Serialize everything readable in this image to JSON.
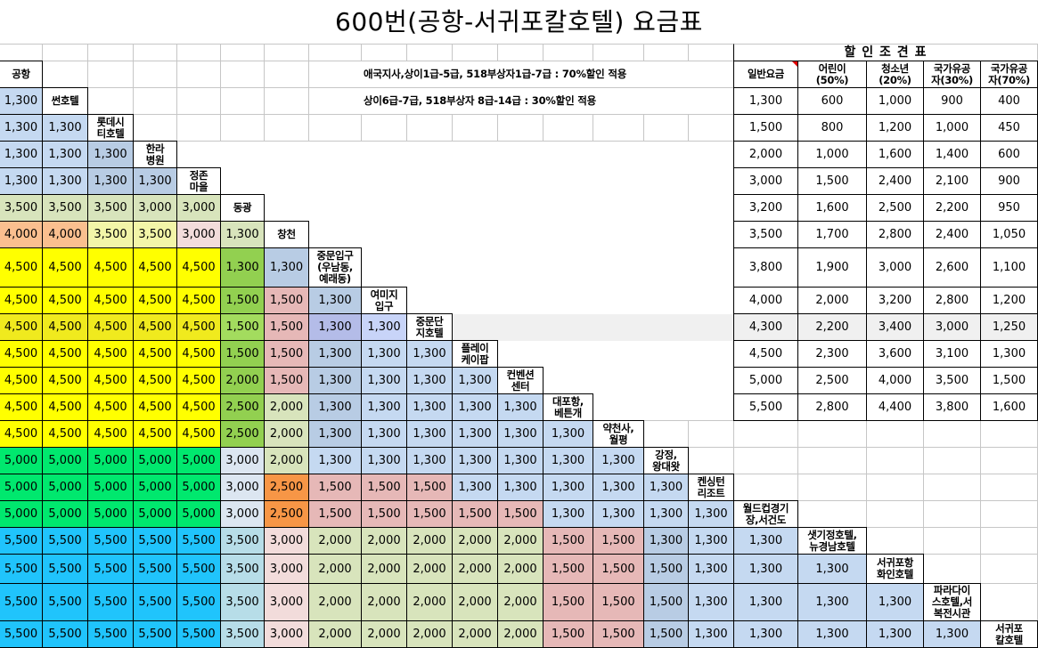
{
  "title": "600번(공항-서귀포칼호텔) 요금표",
  "notes": {
    "line1": "애국지사,상이1급-5급, 518부상자1급-7급 : 70%할인 적용",
    "line2": "상이6급-7급, 518부상자 8급-14급 : 30%할인 적용"
  },
  "colors": {
    "L": "#c5d9f1",
    "B": "#b8cce4",
    "O": "#d8e4bc",
    "P": "#fabf8f",
    "y": "#f2f5a8",
    "K": "#f2dcdb",
    "Y": "#ffff00",
    "G": "#92d050",
    "R": "#e6b8b7",
    "E": "#00e86e",
    "S": "#dce6f1",
    "A": "#f79646",
    "C": "#20c4fc",
    "T": "#b7dde8",
    "Z": "#f0ea1e",
    "g": "#a3dc5e",
    "b": "#b4bce8",
    "l": "#c8d4f8",
    "highlight_band": "#f0f0f0",
    "comment_marker": "#e00000"
  },
  "fare_matrix": {
    "highlighted_row": 9,
    "rows": [
      {
        "stop": "공항",
        "values": [],
        "colors": ""
      },
      {
        "stop": "썬호텔",
        "values": [
          "1,300"
        ],
        "colors": "L"
      },
      {
        "stop": "롯데시\n티호텔",
        "values": [
          "1,300",
          "1,300"
        ],
        "colors": "LL"
      },
      {
        "stop": "한라\n병원",
        "values": [
          "1,300",
          "1,300",
          "1,300"
        ],
        "colors": "LLB"
      },
      {
        "stop": "정존\n마을",
        "values": [
          "1,300",
          "1,300",
          "1,300",
          "1,300"
        ],
        "colors": "LLBB"
      },
      {
        "stop": "동광",
        "values": [
          "3,500",
          "3,500",
          "3,500",
          "3,000",
          "3,000"
        ],
        "colors": "OOOOO"
      },
      {
        "stop": "창천",
        "values": [
          "4,000",
          "4,000",
          "3,500",
          "3,500",
          "3,000",
          "1,300"
        ],
        "colors": "PPyyKO"
      },
      {
        "stop": "중문입구\n(우남동,\n예래동)",
        "values": [
          "4,500",
          "4,500",
          "4,500",
          "4,500",
          "4,500",
          "1,300",
          "1,300"
        ],
        "colors": "YYYYYGB"
      },
      {
        "stop": "여미지\n입구",
        "values": [
          "4,500",
          "4,500",
          "4,500",
          "4,500",
          "4,500",
          "1,500",
          "1,500",
          "1,300"
        ],
        "colors": "YYYYYGRB"
      },
      {
        "stop": "중문단\n지호텔",
        "values": [
          "4,500",
          "4,500",
          "4,500",
          "4,500",
          "4,500",
          "1,500",
          "1,500",
          "1,300",
          "1,300"
        ],
        "colors": "ZZZZZgRbl"
      },
      {
        "stop": "플레이\n케이팝",
        "values": [
          "4,500",
          "4,500",
          "4,500",
          "4,500",
          "4,500",
          "1,500",
          "1,500",
          "1,300",
          "1,300",
          "1,300"
        ],
        "colors": "YYYYYGRBLL"
      },
      {
        "stop": "컨벤션\n센터",
        "values": [
          "4,500",
          "4,500",
          "4,500",
          "4,500",
          "4,500",
          "2,000",
          "1,500",
          "1,300",
          "1,300",
          "1,300",
          "1,300"
        ],
        "colors": "YYYYYGRBLLL"
      },
      {
        "stop": "대포항,\n베튼개",
        "values": [
          "4,500",
          "4,500",
          "4,500",
          "4,500",
          "4,500",
          "2,500",
          "2,000",
          "1,300",
          "1,300",
          "1,300",
          "1,300",
          "1,300"
        ],
        "colors": "YYYYYGOBLLLL"
      },
      {
        "stop": "약천사,\n월평",
        "values": [
          "4,500",
          "4,500",
          "4,500",
          "4,500",
          "4,500",
          "2,500",
          "2,000",
          "1,300",
          "1,300",
          "1,300",
          "1,300",
          "1,300",
          "1,300"
        ],
        "colors": "YYYYYGOBLLLLL"
      },
      {
        "stop": "강정,\n왕대왓",
        "values": [
          "5,000",
          "5,000",
          "5,000",
          "5,000",
          "5,000",
          "3,000",
          "2,000",
          "1,300",
          "1,300",
          "1,300",
          "1,300",
          "1,300",
          "1,300",
          "1,300"
        ],
        "colors": "EEEEESOLLLLLLL"
      },
      {
        "stop": "켄싱턴\n리조트",
        "values": [
          "5,000",
          "5,000",
          "5,000",
          "5,000",
          "5,000",
          "3,000",
          "2,500",
          "1,500",
          "1,500",
          "1,500",
          "1,300",
          "1,300",
          "1,300",
          "1,300",
          "1,300"
        ],
        "colors": "EEEEESARRRLLLLL"
      },
      {
        "stop": "월드컵경기\n장,서건도",
        "values": [
          "5,000",
          "5,000",
          "5,000",
          "5,000",
          "5,000",
          "3,000",
          "2,500",
          "1,500",
          "1,500",
          "1,500",
          "1,500",
          "1,500",
          "1,300",
          "1,300",
          "1,300",
          "1,300"
        ],
        "colors": "EEEEESARRRRRLLLL"
      },
      {
        "stop": "샛기정호텔,\n뉴경남호텔",
        "values": [
          "5,500",
          "5,500",
          "5,500",
          "5,500",
          "5,500",
          "3,500",
          "3,000",
          "2,000",
          "2,000",
          "2,000",
          "2,000",
          "2,000",
          "1,500",
          "1,500",
          "1,300",
          "1,300",
          "1,300"
        ],
        "colors": "CCCCCTKOOOOORRBLL"
      },
      {
        "stop": "서귀포항\n화인호텔",
        "values": [
          "5,500",
          "5,500",
          "5,500",
          "5,500",
          "5,500",
          "3,500",
          "3,000",
          "2,000",
          "2,000",
          "2,000",
          "2,000",
          "2,000",
          "1,500",
          "1,500",
          "1,500",
          "1,300",
          "1,300",
          "1,300"
        ],
        "colors": "CCCCCTKOOOOORRBLLL"
      },
      {
        "stop": "파라다이\n스호텔,서\n복전시관",
        "values": [
          "5,500",
          "5,500",
          "5,500",
          "5,500",
          "5,500",
          "3,500",
          "3,000",
          "2,000",
          "2,000",
          "2,000",
          "2,000",
          "2,000",
          "1,500",
          "1,500",
          "1,500",
          "1,300",
          "1,300",
          "1,300",
          "1,300"
        ],
        "colors": "CCCCCTKOOOOORRBLLLL"
      },
      {
        "stop": "서귀포\n칼호텔",
        "values": [
          "5,500",
          "5,500",
          "5,500",
          "5,500",
          "5,500",
          "3,500",
          "3,000",
          "2,000",
          "2,000",
          "2,000",
          "2,000",
          "2,000",
          "1,500",
          "1,500",
          "1,500",
          "1,300",
          "1,300",
          "1,300",
          "1,300",
          "1,300"
        ],
        "colors": "CCCCCTKOOOOORRBLLLLL"
      }
    ]
  },
  "discount_table": {
    "title": "할 인 조 견 표",
    "highlighted_row": 8,
    "headers": [
      "일반요금",
      "어린이\n(50%)",
      "청소년\n(20%)",
      "국가유공\n자(30%)",
      "국가유공\n자(70%)"
    ],
    "rows": [
      [
        "1,300",
        "600",
        "1,000",
        "900",
        "400"
      ],
      [
        "1,500",
        "800",
        "1,200",
        "1,000",
        "450"
      ],
      [
        "2,000",
        "1,000",
        "1,600",
        "1,400",
        "600"
      ],
      [
        "3,000",
        "1,500",
        "2,400",
        "2,100",
        "900"
      ],
      [
        "3,200",
        "1,600",
        "2,500",
        "2,200",
        "950"
      ],
      [
        "3,500",
        "1,700",
        "2,800",
        "2,400",
        "1,050"
      ],
      [
        "3,800",
        "1,900",
        "3,000",
        "2,600",
        "1,100"
      ],
      [
        "4,000",
        "2,000",
        "3,200",
        "2,800",
        "1,200"
      ],
      [
        "4,300",
        "2,200",
        "3,400",
        "3,000",
        "1,250"
      ],
      [
        "4,500",
        "2,300",
        "3,600",
        "3,100",
        "1,300"
      ],
      [
        "5,000",
        "2,500",
        "4,000",
        "3,500",
        "1,500"
      ],
      [
        "5,500",
        "2,800",
        "4,400",
        "3,800",
        "1,600"
      ]
    ]
  }
}
